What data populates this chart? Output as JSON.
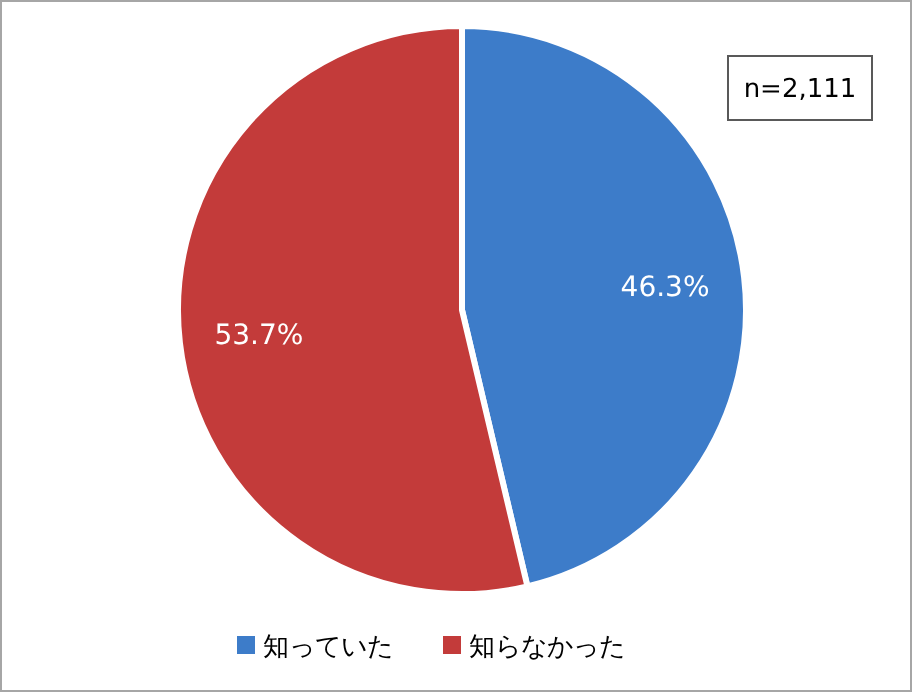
{
  "chart_data": {
    "type": "pie",
    "categories": [
      "知っていた",
      "知らなかった"
    ],
    "values": [
      46.3,
      53.7
    ],
    "colors": [
      "#3d7cc9",
      "#c33b3a"
    ],
    "value_labels": [
      "46.3%",
      "53.7%"
    ],
    "annotations": [
      "n=2,111"
    ],
    "legend": "bottom"
  }
}
